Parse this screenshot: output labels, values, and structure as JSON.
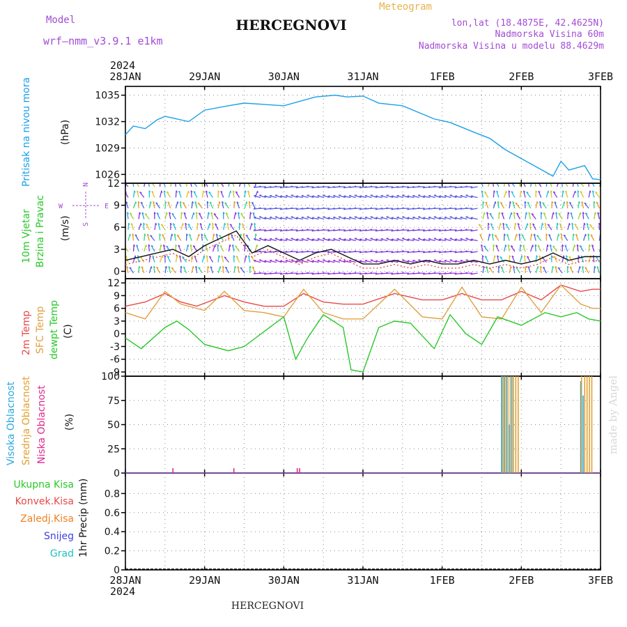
{
  "header": {
    "model_label": "Model",
    "model_name": "wrf—nmm_v3.9.1  e1km",
    "title": "HERCEGNOVI",
    "meteogram": "Meteogram",
    "lonlat": "lon,lat (18.4875E, 42.4625N)",
    "altitude": "Nadmorska Visina 60m",
    "model_altitude": "Nadmorska Visina u modelu 88.4629m",
    "footer_title": "HERCEGNOVI",
    "watermark": "made by Angel",
    "year_top": "2024",
    "year_bottom": "2024"
  },
  "colors": {
    "purple": "#a24cd6",
    "orange": "#e8b24c",
    "pressure": "#1aa0e8",
    "temp2m": "#e84848",
    "sfc": "#e0a040",
    "dew": "#28c828",
    "high_cloud": "#2aa8e0",
    "mid_cloud": "#e0a030",
    "low_cloud": "#e02890"
  },
  "time_axis": {
    "ticks": [
      "28JAN",
      "29JAN",
      "30JAN",
      "31JAN",
      "1FEB",
      "2FEB",
      "3FEB"
    ],
    "range_days": [
      0,
      6
    ]
  },
  "compass": {
    "n": "N",
    "s": "S",
    "e": "E",
    "w": "W"
  },
  "panel_labels": {
    "pressure": [
      "Pritisak na nivou mora",
      "(hPa)"
    ],
    "wind": [
      "10m Vjetar",
      "Brzina i Pravac",
      "(m/s)"
    ],
    "temp": [
      "2m Temp",
      "SFC Temp",
      "dewpt Temp",
      "(C)"
    ],
    "cloud": [
      "Visoka Oblacnost",
      "Srednja Oblacnost",
      "Niska Oblacnost",
      "(%)"
    ],
    "precip": [
      "Ukupna Kisa",
      "Konvek.Kisa",
      "Zaledj.Kisa",
      "Snijeg",
      "Grad",
      "1hr Precip (mm)"
    ]
  },
  "chart_data": [
    {
      "type": "line",
      "ylabel": "(hPa)",
      "ylim": [
        1025,
        1036
      ],
      "yticks": [
        "1035",
        "1032",
        "1029",
        "1026"
      ],
      "series": [
        {
          "name": "Pritisak na nivou mora",
          "x": [
            0,
            0.1,
            0.25,
            0.4,
            0.5,
            0.8,
            1.0,
            1.3,
            1.5,
            2.0,
            2.4,
            2.65,
            2.8,
            3.0,
            3.2,
            3.5,
            3.9,
            4.1,
            4.4,
            4.6,
            4.8,
            5.0,
            5.2,
            5.4,
            5.5,
            5.6,
            5.8,
            5.9,
            6.0
          ],
          "y": [
            1030.5,
            1031.5,
            1031.2,
            1032.2,
            1032.6,
            1032.0,
            1033.3,
            1033.8,
            1034.1,
            1033.8,
            1034.8,
            1035.0,
            1034.8,
            1034.9,
            1034.1,
            1033.8,
            1032.3,
            1031.9,
            1030.8,
            1030.1,
            1028.8,
            1027.8,
            1026.8,
            1025.8,
            1027.5,
            1026.5,
            1027.0,
            1025.5,
            1025.4
          ]
        }
      ]
    },
    {
      "type": "line",
      "ylabel": "(m/s)",
      "ylim": [
        -1,
        12
      ],
      "yticks": [
        "12",
        "9",
        "6",
        "3",
        "0"
      ],
      "series": [
        {
          "name": "speed",
          "x": [
            0,
            0.2,
            0.4,
            0.6,
            0.8,
            1.0,
            1.2,
            1.4,
            1.6,
            1.8,
            2.0,
            2.2,
            2.4,
            2.6,
            2.8,
            3.0,
            3.2,
            3.4,
            3.6,
            3.8,
            4.0,
            4.2,
            4.4,
            4.6,
            4.8,
            5.0,
            5.2,
            5.4,
            5.6,
            5.8,
            6.0
          ],
          "y": [
            1.5,
            2.0,
            2.5,
            3.0,
            2.0,
            3.5,
            4.5,
            5.5,
            2.5,
            3.5,
            2.5,
            1.5,
            2.5,
            3.0,
            2.0,
            1.0,
            1.0,
            1.5,
            1.0,
            1.5,
            1.0,
            1.0,
            1.5,
            1.0,
            1.5,
            1.0,
            1.5,
            2.5,
            1.5,
            2.0,
            2.0
          ]
        }
      ]
    },
    {
      "type": "line",
      "ylabel": "(C)",
      "ylim": [
        -10,
        13
      ],
      "yticks": [
        "12",
        "9",
        "6",
        "3",
        "0",
        "-3",
        "-6",
        "-9"
      ],
      "series": [
        {
          "name": "2m Temp",
          "x": [
            0,
            0.25,
            0.5,
            0.7,
            0.9,
            1.25,
            1.5,
            1.75,
            2.0,
            2.25,
            2.5,
            2.75,
            3.0,
            3.4,
            3.75,
            4.0,
            4.25,
            4.5,
            4.75,
            5.0,
            5.25,
            5.5,
            5.75,
            5.9,
            6.0
          ],
          "y": [
            6.5,
            7.5,
            9.5,
            7.5,
            6.5,
            9.0,
            7.5,
            6.5,
            6.5,
            9.5,
            7.5,
            7.0,
            7.0,
            9.5,
            8.0,
            8.0,
            9.5,
            8.0,
            8.0,
            10.0,
            8.0,
            11.5,
            10.0,
            10.5,
            10.5
          ]
        },
        {
          "name": "SFC Temp",
          "x": [
            0,
            0.25,
            0.5,
            0.7,
            1.0,
            1.25,
            1.5,
            1.75,
            2.0,
            2.25,
            2.5,
            2.75,
            3.0,
            3.4,
            3.75,
            4.0,
            4.25,
            4.5,
            4.75,
            5.0,
            5.25,
            5.5,
            5.75,
            5.9,
            6.0
          ],
          "y": [
            5.0,
            3.5,
            10.0,
            7.0,
            5.5,
            10.0,
            5.5,
            5.0,
            4.0,
            10.5,
            5.0,
            3.5,
            3.5,
            10.5,
            4.0,
            3.5,
            11.0,
            4.0,
            3.5,
            11.0,
            5.0,
            11.5,
            7.0,
            6.0,
            6.0
          ]
        },
        {
          "name": "dewpt Temp",
          "x": [
            0,
            0.2,
            0.5,
            0.65,
            0.8,
            1.0,
            1.3,
            1.5,
            2.0,
            2.15,
            2.3,
            2.5,
            2.75,
            2.85,
            3.0,
            3.2,
            3.4,
            3.6,
            3.9,
            4.1,
            4.3,
            4.5,
            4.7,
            5.0,
            5.3,
            5.5,
            5.7,
            5.85,
            6.0
          ],
          "y": [
            -1.0,
            -3.5,
            1.5,
            3.0,
            1.0,
            -2.5,
            -4.0,
            -3.0,
            4.0,
            -6.0,
            -1.0,
            4.5,
            1.5,
            -8.5,
            -9.0,
            1.5,
            3.0,
            2.5,
            -3.5,
            4.5,
            0.0,
            -2.5,
            4.0,
            2.0,
            5.0,
            4.0,
            5.0,
            3.5,
            3.0
          ]
        }
      ]
    },
    {
      "type": "bar",
      "ylabel": "(%)",
      "ylim": [
        0,
        100
      ],
      "yticks": [
        "100",
        "75",
        "50",
        "25",
        "0"
      ],
      "series": [
        {
          "name": "Visoka Oblacnost",
          "x": [
            4.75,
            4.78,
            4.81,
            4.85,
            4.88,
            5.75,
            5.78
          ],
          "y": [
            100,
            100,
            100,
            50,
            100,
            95,
            80
          ]
        },
        {
          "name": "Srednja Oblacnost",
          "x": [
            4.76,
            4.79,
            4.83,
            4.86,
            4.9,
            4.93,
            4.96,
            5.76,
            5.8,
            5.83,
            5.86,
            5.89
          ],
          "y": [
            100,
            100,
            100,
            100,
            100,
            100,
            100,
            100,
            100,
            100,
            100,
            100
          ]
        },
        {
          "name": "Niska Oblacnost",
          "x": [
            0.6,
            1.37,
            2.17,
            2.2
          ],
          "y": [
            5,
            5,
            5,
            5
          ]
        }
      ]
    },
    {
      "type": "bar",
      "ylabel": "1hr Precip (mm)",
      "ylim": [
        0,
        1
      ],
      "yticks": [
        "0.8",
        "0.6",
        "0.4",
        "0.2",
        "0"
      ],
      "series": [
        {
          "name": "Ukupna Kisa",
          "x": [],
          "y": []
        },
        {
          "name": "Konvek.Kisa",
          "x": [],
          "y": []
        },
        {
          "name": "Zaledj.Kisa",
          "x": [],
          "y": []
        },
        {
          "name": "Snijeg",
          "x": [],
          "y": []
        },
        {
          "name": "Grad",
          "x": [],
          "y": []
        }
      ]
    }
  ]
}
